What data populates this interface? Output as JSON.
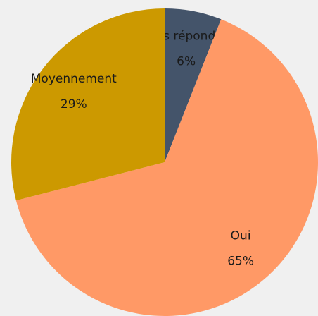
{
  "chart_data": {
    "type": "pie",
    "categories": [
      "Pas répondu",
      "Oui",
      "Moyennement"
    ],
    "values": [
      6,
      65,
      29
    ],
    "value_labels": [
      "6%",
      "65%",
      "29%"
    ],
    "colors": [
      "#44546a",
      "#ff9966",
      "#cc9900"
    ]
  }
}
